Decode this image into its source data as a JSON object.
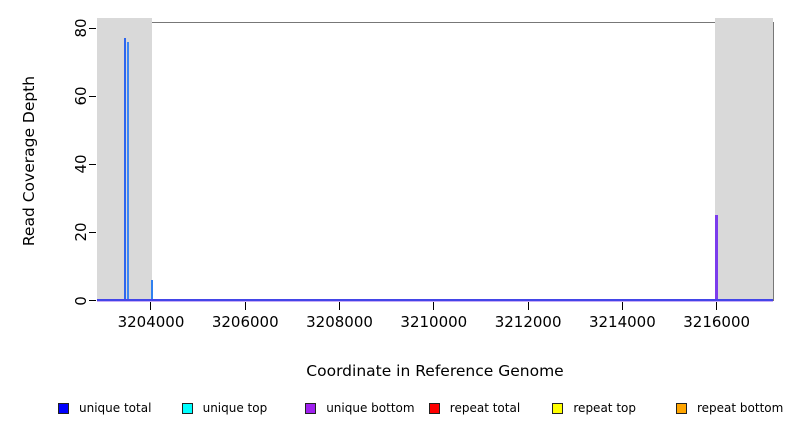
{
  "chart_data": {
    "type": "line",
    "title": "",
    "xlabel": "Coordinate in Reference Genome",
    "ylabel": "Read Coverage Depth",
    "xlim": [
      3202855,
      3217195
    ],
    "ylim": [
      0,
      81.8
    ],
    "grid": false,
    "legend_position": "bottom",
    "xticks": [
      3204000,
      3206000,
      3208000,
      3210000,
      3212000,
      3214000,
      3216000
    ],
    "xtick_labels": [
      "3204000",
      "3206000",
      "3208000",
      "3210000",
      "3212000",
      "3214000",
      "3216000"
    ],
    "yticks": [
      0,
      20,
      40,
      60,
      80
    ],
    "ytick_labels": [
      "0",
      "20",
      "40",
      "60",
      "80"
    ],
    "series": [
      {
        "name": "unique total",
        "color": "#0000FF"
      },
      {
        "name": "unique top",
        "color": "#00FFFF"
      },
      {
        "name": "unique bottom",
        "color": "#A020F0"
      },
      {
        "name": "repeat total",
        "color": "#FF0000"
      },
      {
        "name": "repeat top",
        "color": "#FFFF00"
      },
      {
        "name": "repeat bottom",
        "color": "#FFA500"
      }
    ],
    "shaded_regions": [
      {
        "x0": 3202860,
        "x1": 3204030,
        "color": "#d9d9d9"
      },
      {
        "x0": 3215960,
        "x1": 3217195,
        "color": "#d9d9d9"
      }
    ],
    "spikes": [
      {
        "series": "unique total",
        "x": 3203455,
        "depth": 77,
        "render_color": "#2e66ee"
      },
      {
        "series": "unique top",
        "x": 3203515,
        "depth": 76,
        "render_color": "#3d86f2"
      },
      {
        "series": "unique top",
        "x": 3204030,
        "depth": 6,
        "render_color": "#2f80f0"
      },
      {
        "series": "unique bottom",
        "x": 3215990,
        "depth": 25,
        "render_color": "#7b3cec"
      }
    ],
    "baseline": {
      "value": 0,
      "top_color": "#4345e8",
      "bottom_color": "#c9abf7"
    }
  }
}
